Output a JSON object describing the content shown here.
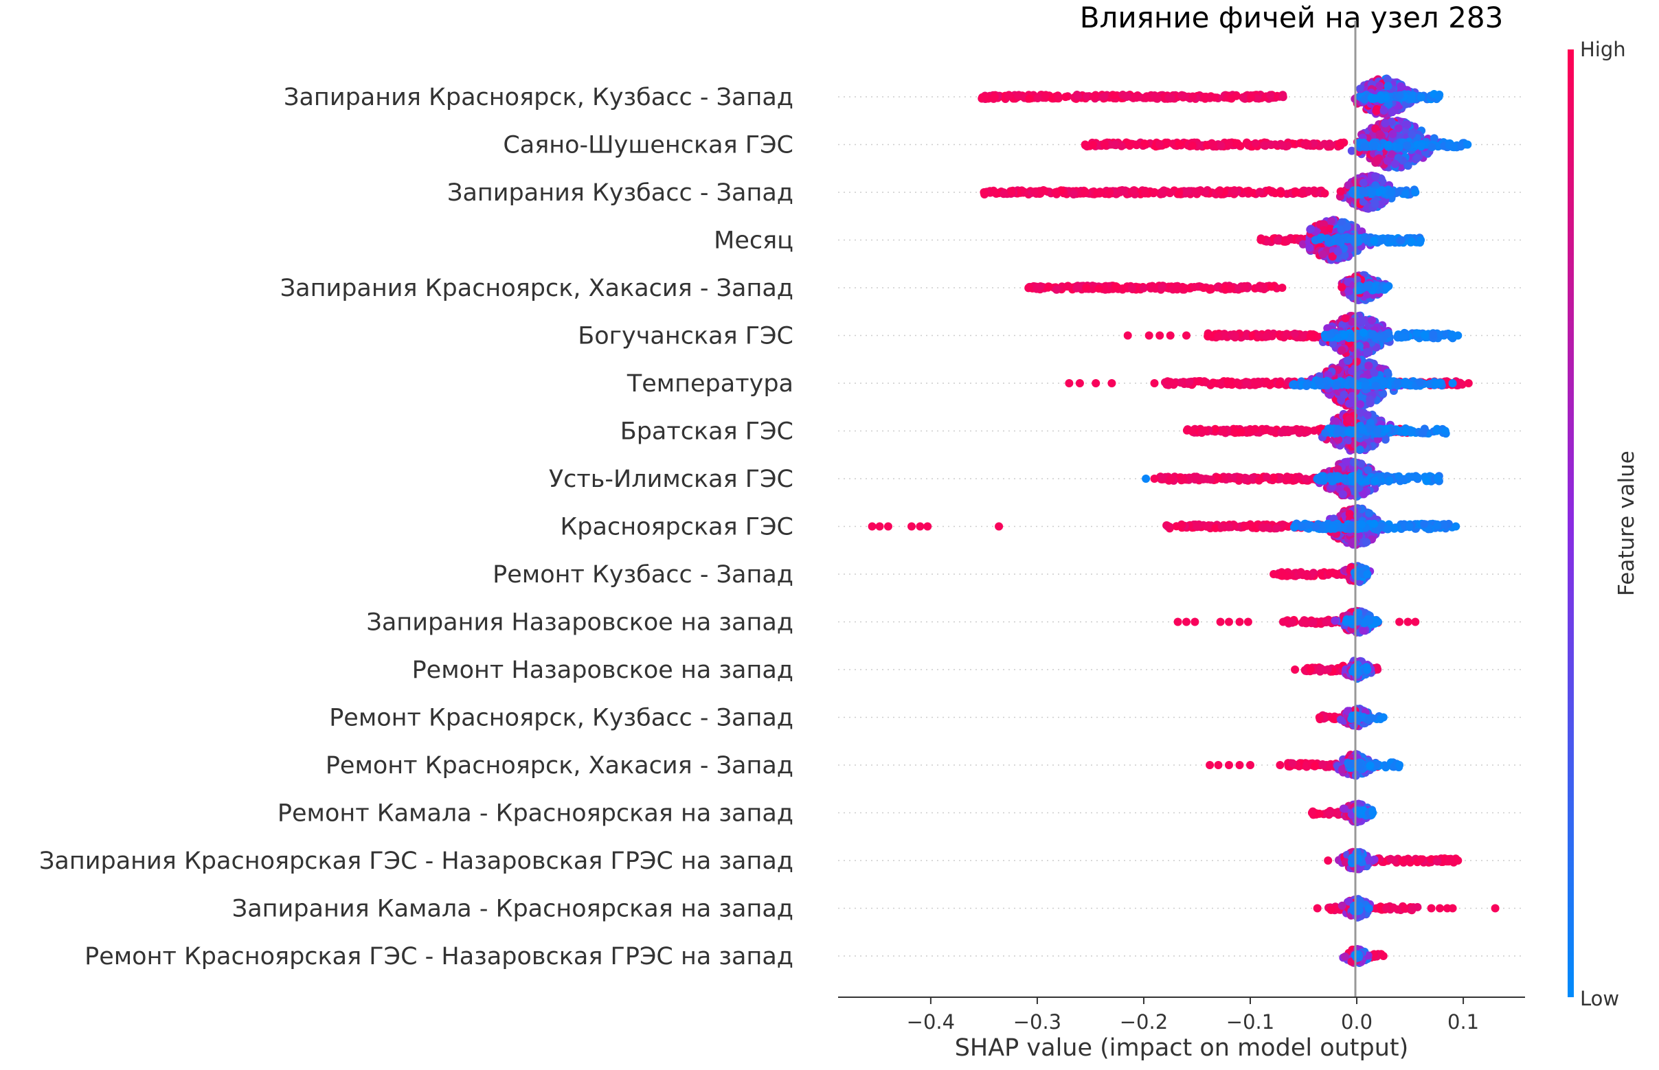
{
  "chart_data": {
    "type": "scatter",
    "subtype": "shap-beeswarm",
    "title": "Влияние фичей на узел 283",
    "xlabel": "SHAP value (impact on model output)",
    "xlim": [
      -0.487,
      0.158
    ],
    "xticks": [
      "−0.4",
      "−0.3",
      "−0.2",
      "−0.1",
      "0.0",
      "0.1"
    ],
    "xtick_values": [
      -0.4,
      -0.3,
      -0.2,
      -0.1,
      0.0,
      0.1
    ],
    "grid": false,
    "colorbar": {
      "title": "Feature value",
      "high_label": "High",
      "low_label": "Low",
      "high_color": "#ff0052",
      "mid_color": "#8a2be2",
      "low_color": "#008bfb"
    },
    "features": [
      {
        "name": "Запирания Красноярск, Кузбасс - Запад",
        "high_range": [
          -0.352,
          -0.068
        ],
        "low_range": [
          0.0,
          0.078
        ],
        "center": 0.025,
        "spread": 1.0,
        "outliers_high": [
          -0.35,
          -0.34
        ],
        "outliers_low": [
          0.077
        ]
      },
      {
        "name": "Саяно-Шушенская ГЭС",
        "high_range": [
          -0.255,
          -0.01
        ],
        "low_range": [
          0.0,
          0.105
        ],
        "center": 0.035,
        "spread": 1.3,
        "outliers_high": [
          -0.255
        ],
        "outliers_low": [
          0.104
        ]
      },
      {
        "name": "Запирания Кузбасс - Запад",
        "high_range": [
          -0.35,
          -0.03
        ],
        "low_range": [
          -0.005,
          0.055
        ],
        "center": 0.012,
        "spread": 0.9,
        "outliers_high": [
          -0.35,
          -0.34,
          -0.324,
          -0.283,
          -0.255,
          -0.24,
          -0.232
        ],
        "outliers_low": [
          0.055
        ]
      },
      {
        "name": "Месяц",
        "high_range": [
          -0.09,
          0.02
        ],
        "low_range": [
          -0.04,
          0.06
        ],
        "center": -0.02,
        "spread": 1.1,
        "outliers_high": [
          -0.09
        ],
        "outliers_low": [
          0.06
        ]
      },
      {
        "name": "Запирания Красноярск, Хакасия - Запад",
        "high_range": [
          -0.31,
          -0.075
        ],
        "low_range": [
          0.0,
          0.03
        ],
        "center": 0.005,
        "spread": 0.7,
        "outliers_high": [
          -0.308,
          -0.07
        ],
        "outliers_low": [
          0.028
        ]
      },
      {
        "name": "Богучанская ГЭС",
        "high_range": [
          -0.14,
          0.02
        ],
        "low_range": [
          -0.03,
          0.09
        ],
        "center": 0.0,
        "spread": 1.1,
        "outliers_high": [
          -0.215,
          -0.195,
          -0.185,
          -0.175,
          -0.16
        ],
        "outliers_low": [
          0.095
        ]
      },
      {
        "name": "Температура",
        "high_range": [
          -0.18,
          0.1
        ],
        "low_range": [
          -0.06,
          0.08
        ],
        "center": 0.0,
        "spread": 1.3,
        "outliers_high": [
          -0.27,
          -0.26,
          -0.245,
          -0.23,
          -0.19,
          0.105
        ],
        "outliers_low": [
          0.09
        ]
      },
      {
        "name": "Братская ГЭС",
        "high_range": [
          -0.16,
          0.05
        ],
        "low_range": [
          -0.03,
          0.085
        ],
        "center": 0.0,
        "spread": 1.1,
        "outliers_high": [
          -0.155
        ],
        "outliers_low": [
          0.075,
          0.083
        ]
      },
      {
        "name": "Усть-Илимская ГЭС",
        "high_range": [
          -0.19,
          0.03
        ],
        "low_range": [
          -0.04,
          0.08
        ],
        "center": -0.005,
        "spread": 1.0,
        "outliers_high": [
          -0.19
        ],
        "outliers_low": [
          -0.198,
          0.076
        ]
      },
      {
        "name": "Красноярская ГЭС",
        "high_range": [
          -0.18,
          0.0
        ],
        "low_range": [
          -0.06,
          0.09
        ],
        "center": 0.0,
        "spread": 1.0,
        "outliers_high": [
          -0.455,
          -0.448,
          -0.44,
          -0.418,
          -0.41,
          -0.403,
          -0.336
        ],
        "outliers_low": [
          0.093
        ]
      },
      {
        "name": "Ремонт Кузбасс - Запад",
        "high_range": [
          -0.075,
          -0.005
        ],
        "low_range": [
          -0.002,
          0.01
        ],
        "center": 0.0,
        "spread": 0.45,
        "outliers_high": [
          -0.078
        ],
        "outliers_low": [
          0.01
        ]
      },
      {
        "name": "Запирания Назаровское на запад",
        "high_range": [
          -0.07,
          0.02
        ],
        "low_range": [
          -0.01,
          0.02
        ],
        "center": 0.0,
        "spread": 0.6,
        "outliers_high": [
          -0.168,
          -0.16,
          -0.152,
          -0.128,
          -0.12,
          -0.11,
          -0.102,
          0.04,
          0.048,
          0.055
        ],
        "outliers_low": [
          0.02
        ]
      },
      {
        "name": "Ремонт Назаровское на запад",
        "high_range": [
          -0.05,
          0.02
        ],
        "low_range": [
          -0.005,
          0.01
        ],
        "center": 0.0,
        "spread": 0.5,
        "outliers_high": [
          -0.058
        ],
        "outliers_low": [
          0.01
        ]
      },
      {
        "name": "Ремонт Красноярск, Кузбасс - Запад",
        "high_range": [
          -0.035,
          0.0
        ],
        "low_range": [
          -0.005,
          0.025
        ],
        "center": 0.0,
        "spread": 0.5,
        "outliers_high": [
          -0.035
        ],
        "outliers_low": [
          0.025
        ]
      },
      {
        "name": "Ремонт Красноярск, Хакасия - Запад",
        "high_range": [
          -0.07,
          0.02
        ],
        "low_range": [
          -0.01,
          0.04
        ],
        "center": -0.002,
        "spread": 0.6,
        "outliers_high": [
          -0.138,
          -0.13,
          -0.12,
          -0.11,
          -0.1,
          -0.072
        ],
        "outliers_low": [
          0.04
        ]
      },
      {
        "name": "Ремонт Камала - Красноярская на запад",
        "high_range": [
          -0.042,
          0.0
        ],
        "low_range": [
          -0.002,
          0.015
        ],
        "center": 0.0,
        "spread": 0.5,
        "outliers_high": [
          -0.042
        ],
        "outliers_low": [
          0.015
        ]
      },
      {
        "name": "Запирания Красноярская ГЭС - Назаровская ГРЭС на запад",
        "high_range": [
          0.0,
          0.095
        ],
        "low_range": [
          -0.005,
          0.005
        ],
        "center": 0.0,
        "spread": 0.5,
        "outliers_high": [
          -0.027,
          0.095
        ],
        "outliers_low": []
      },
      {
        "name": "Запирания Камала - Красноярская на запад",
        "high_range": [
          -0.03,
          0.06
        ],
        "low_range": [
          -0.003,
          0.003
        ],
        "center": 0.0,
        "spread": 0.5,
        "outliers_high": [
          -0.037,
          0.07,
          0.078,
          0.085,
          0.09,
          0.13
        ],
        "outliers_low": []
      },
      {
        "name": "Ремонт Красноярская ГЭС - Назаровская ГРЭС на запад",
        "high_range": [
          -0.01,
          0.025
        ],
        "low_range": [
          -0.002,
          0.002
        ],
        "center": 0.0,
        "spread": 0.4,
        "outliers_high": [
          0.025
        ],
        "outliers_low": []
      }
    ]
  }
}
